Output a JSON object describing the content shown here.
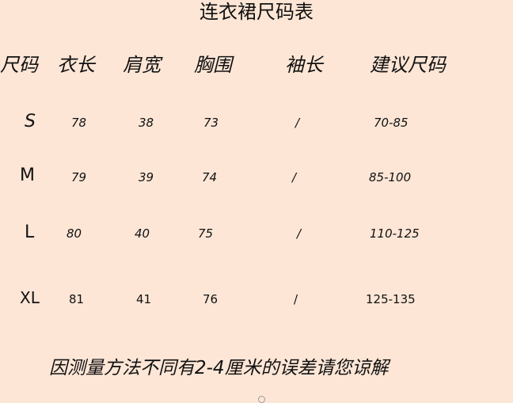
{
  "title": "连衣裙尺码表",
  "headers": [
    "尺码",
    "衣长",
    "肩宽",
    "胸围",
    "袖长",
    "建议尺码"
  ],
  "rows": [
    [
      "S",
      "78",
      "38",
      "73",
      "/",
      "70-85"
    ],
    [
      "M",
      "79",
      "39",
      "74",
      "/",
      "85-100"
    ],
    [
      "L",
      "80",
      "40",
      "75",
      "/",
      "110-125"
    ],
    [
      "XL",
      "81",
      "41",
      "76",
      "/",
      "125-135"
    ]
  ],
  "footnote": "因测量方法不同有2-4厘米的误差请您谅解",
  "colors": {
    "background": "#fde6d6",
    "text": "#111111"
  }
}
